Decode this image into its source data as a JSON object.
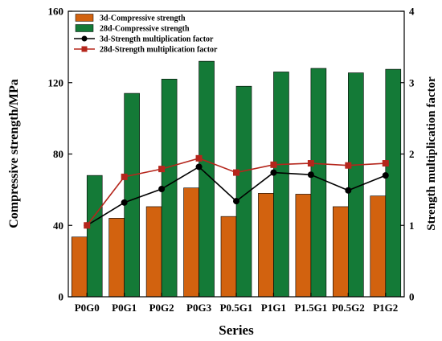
{
  "chart_data": {
    "type": "bar",
    "categories": [
      "P0G0",
      "P0G1",
      "P0G2",
      "P0G3",
      "P0.5G1",
      "P1G1",
      "P1.5G1",
      "P0.5G2",
      "P1G2"
    ],
    "series": [
      {
        "name": "3d-Compressive strength",
        "kind": "bar",
        "axis": "left",
        "color": "#d2620f",
        "values": [
          33.5,
          44,
          50.5,
          61,
          45,
          58,
          57.5,
          50.5,
          56.5
        ]
      },
      {
        "name": "28d-Compressive strength",
        "kind": "bar",
        "axis": "left",
        "color": "#147a37",
        "values": [
          68,
          114,
          122,
          132,
          118,
          126,
          128,
          125.5,
          127.5
        ]
      },
      {
        "name": "3d-Strength multiplication factor",
        "kind": "line",
        "axis": "right",
        "color": "#000000",
        "marker": "circle",
        "values": [
          1.0,
          1.32,
          1.51,
          1.82,
          1.34,
          1.74,
          1.71,
          1.49,
          1.7
        ]
      },
      {
        "name": "28d-Strength multiplication factor",
        "kind": "line",
        "axis": "right",
        "color": "#b5261c",
        "marker": "square",
        "values": [
          1.0,
          1.68,
          1.79,
          1.94,
          1.74,
          1.85,
          1.87,
          1.84,
          1.87
        ]
      }
    ],
    "xlabel": "Series",
    "ylabel": "Compressive strength/MPa",
    "ylabel_right": "Strength multiplication factor",
    "ylim": [
      0,
      160
    ],
    "ylim_right": [
      0,
      4
    ],
    "yticks": [
      0,
      40,
      80,
      120,
      160
    ],
    "yticks_right": [
      0,
      1,
      2,
      3,
      4
    ],
    "legend_position": "top-left",
    "grid": false
  }
}
